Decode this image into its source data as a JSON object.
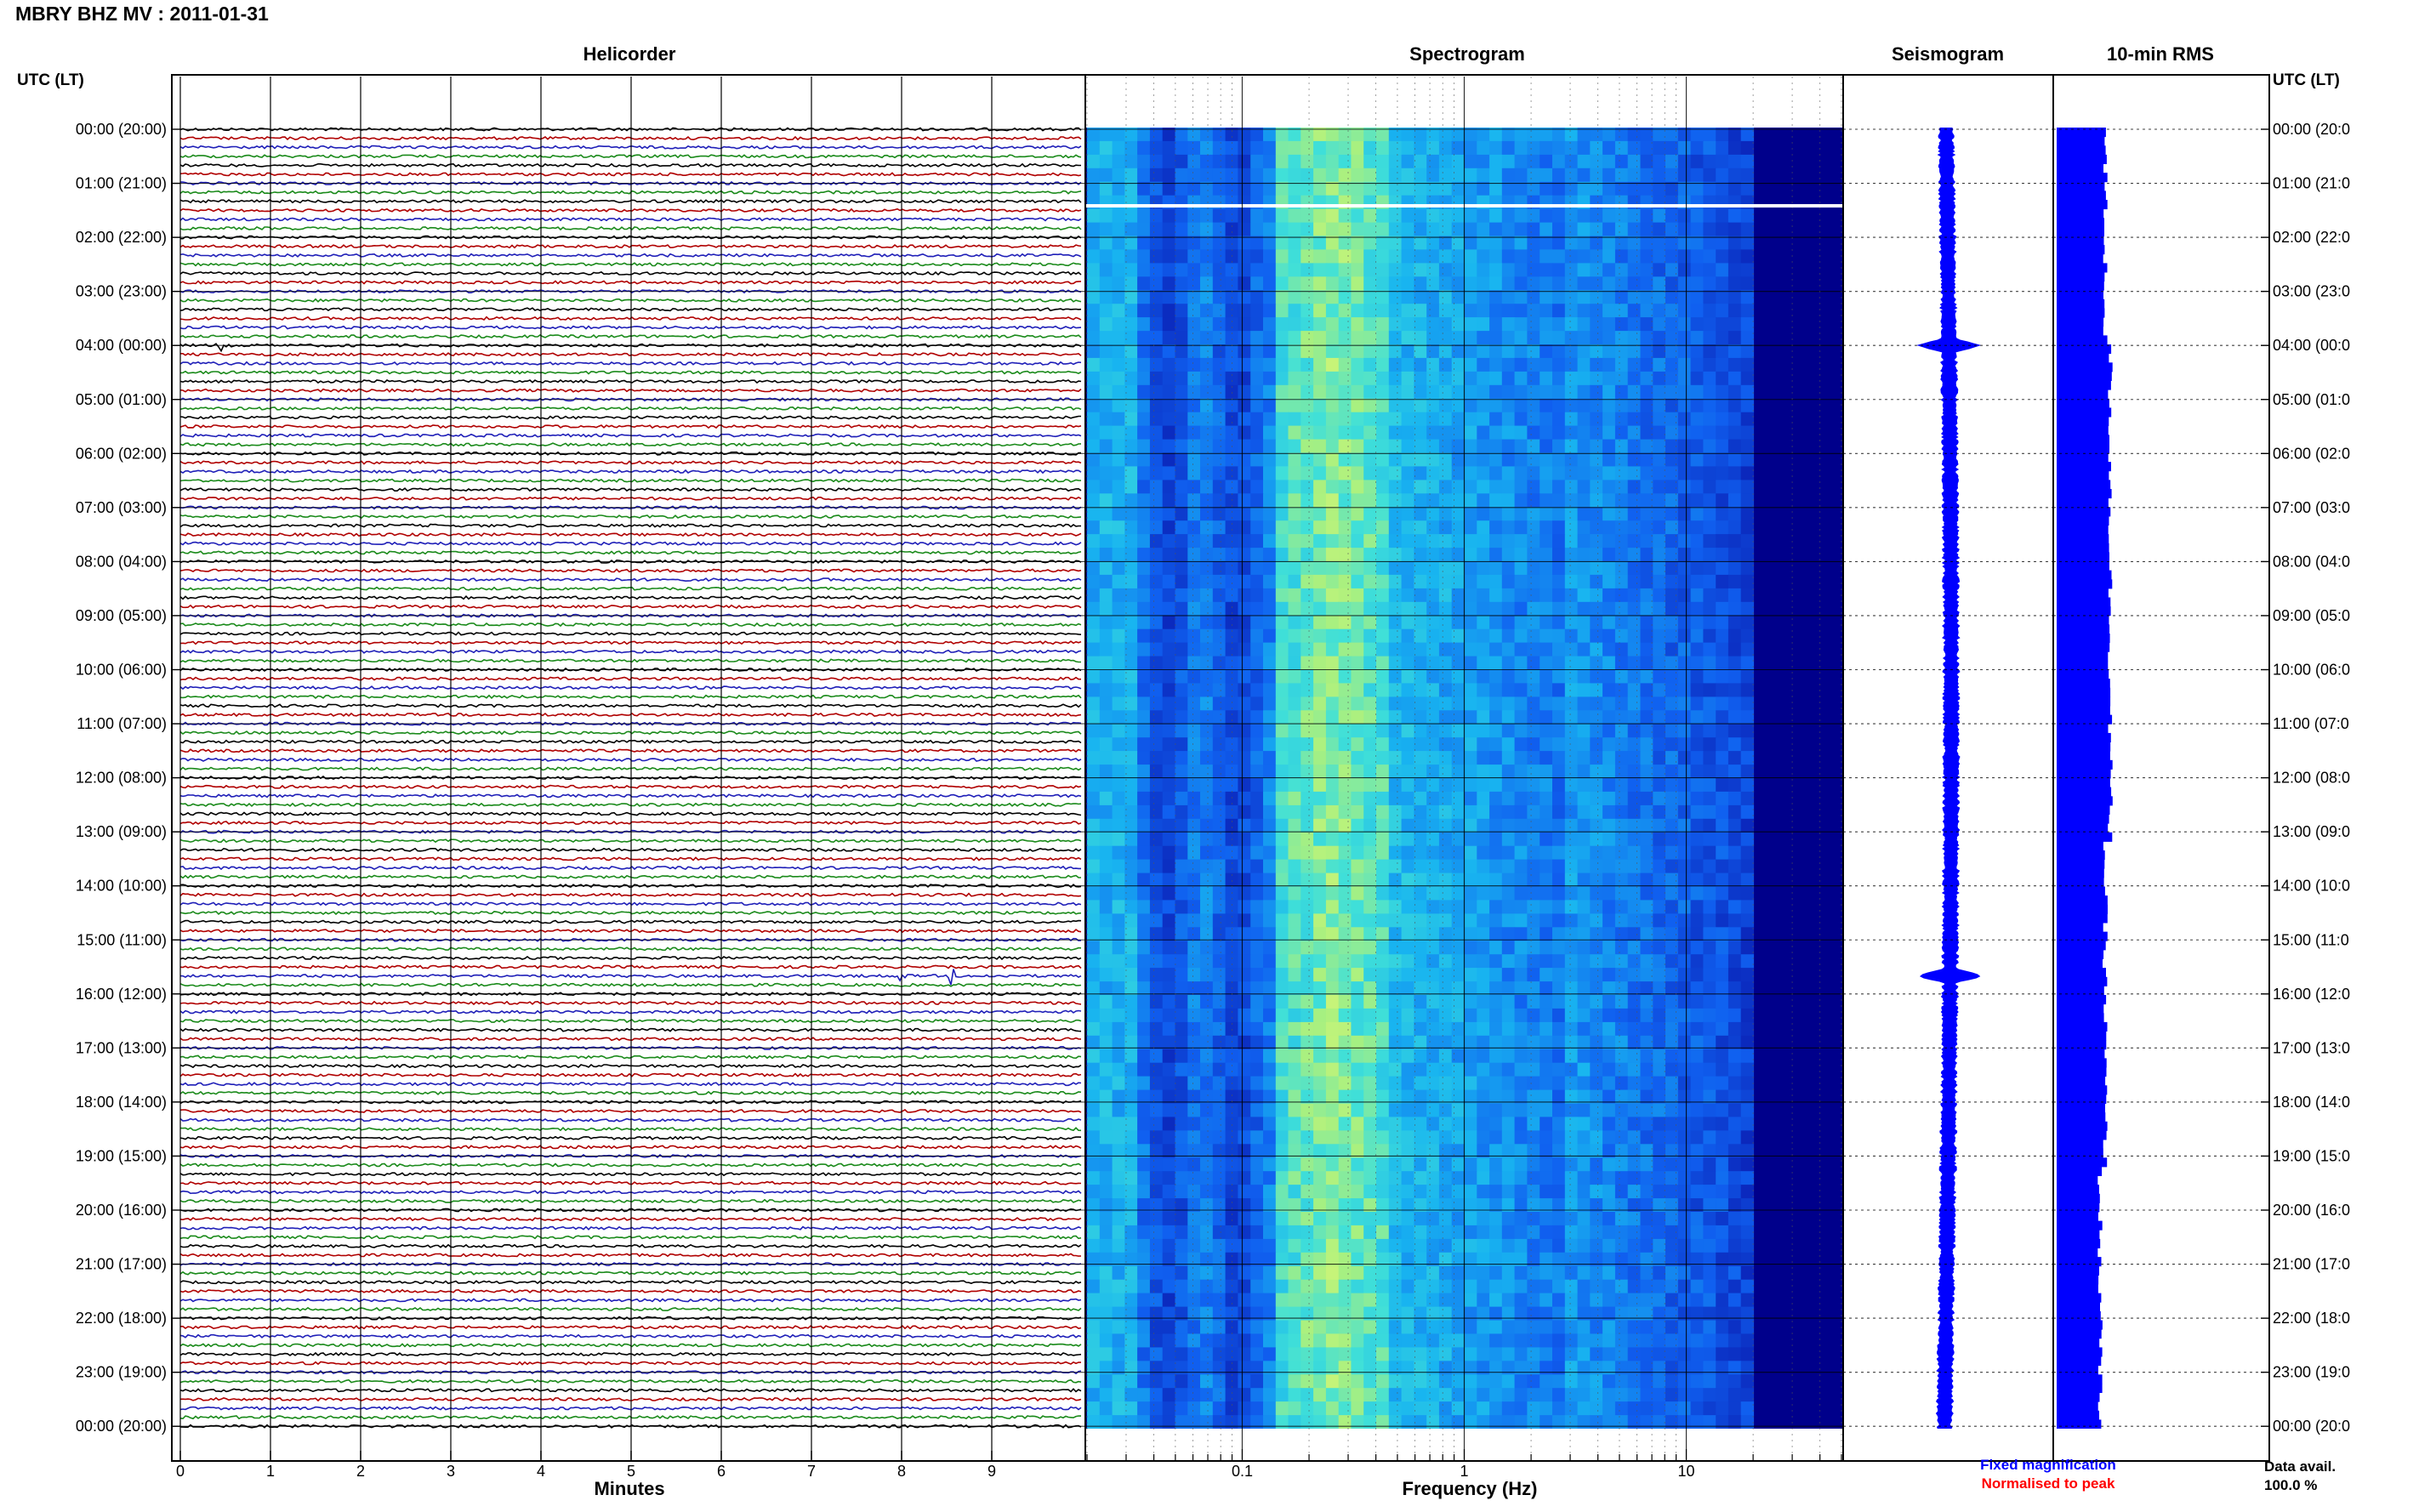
{
  "title": "MBRY BHZ MV : 2011-01-31",
  "time_axis_label_left": "UTC (LT)",
  "time_axis_label_right": "UTC (LT)",
  "time_labels": [
    "00:00 (20:00)",
    "01:00 (21:00)",
    "02:00 (22:00)",
    "03:00 (23:00)",
    "04:00 (00:00)",
    "05:00 (01:00)",
    "06:00 (02:00)",
    "07:00 (03:00)",
    "08:00 (04:00)",
    "09:00 (05:00)",
    "10:00 (06:00)",
    "11:00 (07:00)",
    "12:00 (08:00)",
    "13:00 (09:00)",
    "14:00 (10:00)",
    "15:00 (11:00)",
    "16:00 (12:00)",
    "17:00 (13:00)",
    "18:00 (14:00)",
    "19:00 (15:00)",
    "20:00 (16:00)",
    "21:00 (17:00)",
    "22:00 (18:00)",
    "23:00 (19:00)",
    "00:00 (20:00)"
  ],
  "time_labels_right": [
    "00:00 (20:0",
    "01:00 (21:0",
    "02:00 (22:0",
    "03:00 (23:0",
    "04:00 (00:0",
    "05:00 (01:0",
    "06:00 (02:0",
    "07:00 (03:0",
    "08:00 (04:0",
    "09:00 (05:0",
    "10:00 (06:0",
    "11:00 (07:0",
    "12:00 (08:0",
    "13:00 (09:0",
    "14:00 (10:0",
    "15:00 (11:0",
    "16:00 (12:0",
    "17:00 (13:0",
    "18:00 (14:0",
    "19:00 (15:0",
    "20:00 (16:0",
    "21:00 (17:0",
    "22:00 (18:0",
    "23:00 (19:0",
    "00:00 (20:0"
  ],
  "footer": {
    "fixed_magnification": "Fixed magnification",
    "normalised_to_peak": "Normalised to peak",
    "data_avail_label": "Data avail.",
    "data_avail_value": "100.0 %"
  },
  "colors": {
    "trace_cycle": [
      "#000000",
      "#b00000",
      "#1f1fb8",
      "#1a8a1a"
    ],
    "fixed_magnification": "#0000ff",
    "normalised_to_peak": "#ff0000",
    "seismogram": "#0000ff",
    "rms": "#0000ff",
    "spectro_background": "#00008b"
  },
  "chart_data": [
    {
      "type": "line",
      "panel": "helicorder",
      "title": "Helicorder",
      "xlabel": "Minutes",
      "x_ticks": [
        "0",
        "1",
        "2",
        "3",
        "4",
        "5",
        "6",
        "7",
        "8",
        "9"
      ],
      "xlim": [
        0,
        10
      ],
      "traces_per_hour": 6,
      "trace_minutes": 10,
      "n_traces": 144,
      "notable_events": [
        {
          "time": "15:40",
          "minute": 8.0,
          "note": "large spike"
        },
        {
          "time": "15:40",
          "minute": 8.55,
          "note": "spike"
        },
        {
          "time": "04:00",
          "minute": 0.45,
          "note": "spike"
        }
      ]
    },
    {
      "type": "heatmap",
      "panel": "spectrogram",
      "title": "Spectrogram",
      "xlabel": "Frequency (Hz)",
      "x_ticks": [
        "0.1",
        "1",
        "10"
      ],
      "x_scale": "log",
      "xlim_hz": [
        0.02,
        50
      ],
      "row_gap": "01:25",
      "energy_band_hz": [
        0.15,
        0.4
      ],
      "cutoff_hz": 20
    },
    {
      "type": "line",
      "panel": "seismogram",
      "title": "Seismogram",
      "notable_events": [
        {
          "time": "15:40",
          "note": "largest excursion"
        },
        {
          "time": "04:00",
          "note": "excursion"
        }
      ]
    },
    {
      "type": "bar",
      "panel": "rms",
      "title": "10-min RMS",
      "orientation": "horizontal",
      "n_bars": 144,
      "relative_level": "roughly constant, slightly higher 04:00-13:00"
    }
  ]
}
